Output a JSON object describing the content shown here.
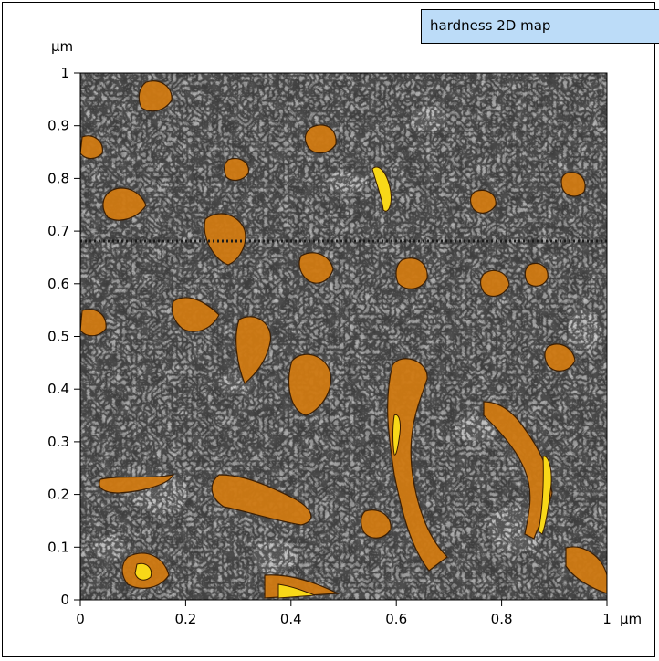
{
  "title": "hardness 2D map",
  "y_unit": "µm",
  "x_unit": "µm",
  "x_ticks": [
    "0",
    "0.2",
    "0.4",
    "0.6",
    "0.8",
    "1"
  ],
  "y_ticks": [
    "0",
    "0.1",
    "0.2",
    "0.3",
    "0.4",
    "0.5",
    "0.6",
    "0.7",
    "0.8",
    "0.9",
    "1"
  ],
  "colors": {
    "title_box": "#bcdcf8",
    "gray_dark": "#4a4a4a",
    "gray_mid": "#8c8c8c",
    "gray_light": "#d2d2d2",
    "orange": "#d07a12",
    "orange_bright": "#f0a818",
    "yellow": "#f8d818"
  }
}
